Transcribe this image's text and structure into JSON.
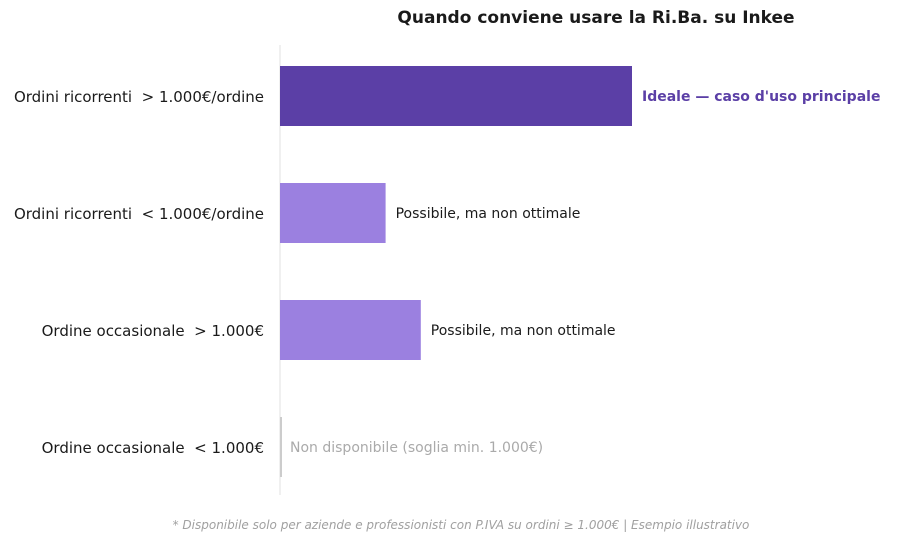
{
  "chart_data": {
    "type": "bar",
    "orientation": "horizontal",
    "title": "Quando conviene usare la Ri.Ba. su Inkee",
    "categories": [
      "Ordini ricorrenti  > 1.000€/ordine",
      "Ordini ricorrenti  < 1.000€/ordine",
      "Ordine occasionale  > 1.000€",
      "Ordine occasionale  < 1.000€"
    ],
    "values": [
      100,
      30,
      40,
      0
    ],
    "xlim": [
      0,
      100
    ],
    "annotations": [
      "Ideale — caso d'uso principale",
      "Possibile, ma non ottimale",
      "Possibile, ma non ottimale",
      "Non disponibile (soglia min. 1.000€)"
    ],
    "bar_colors": [
      "#5b3fa6",
      "#9b80e0",
      "#9b80e0",
      "#cccccc"
    ],
    "annotation_colors": [
      "#5b3fa6",
      "#1a1a1a",
      "#1a1a1a",
      "#aaaaaa"
    ],
    "annotation_bold": [
      true,
      false,
      false,
      false
    ],
    "footnote": "* Disponibile solo per aziende e professionisti con P.IVA su ordini ≥ 1.000€  |  Esempio illustrativo",
    "grid": false,
    "legend": "none"
  }
}
